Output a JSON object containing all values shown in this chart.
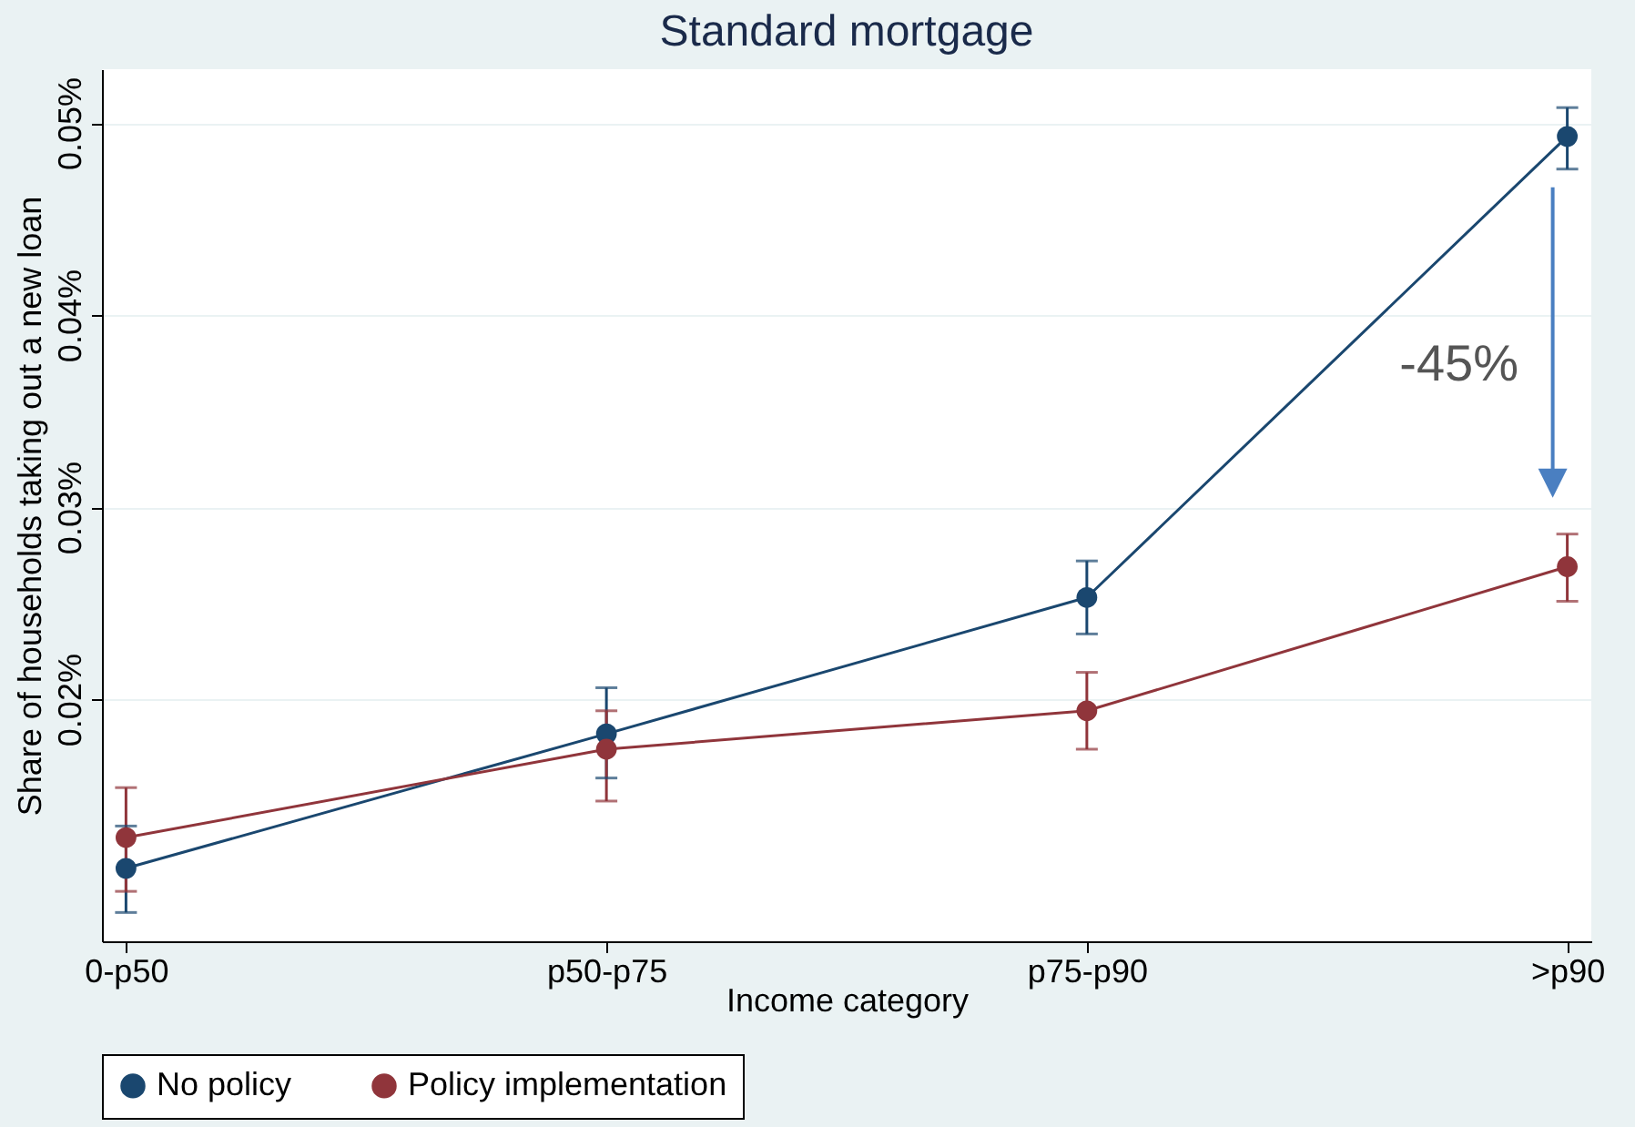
{
  "chart_data": {
    "type": "line",
    "title": "Standard mortgage",
    "xlabel": "Income category",
    "ylabel": "Share of households taking out a new loan",
    "categories": [
      "0-p50",
      "p50-p75",
      "p75-p90",
      ">p90"
    ],
    "series": [
      {
        "name": "No policy",
        "color": "#1a476f",
        "values": [
          0.0112,
          0.0182,
          0.0253,
          0.0493
        ],
        "errors": [
          [
            0.0089,
            0.0134
          ],
          [
            0.0159,
            0.0206
          ],
          [
            0.0234,
            0.0272
          ],
          [
            0.0476,
            0.0508
          ]
        ]
      },
      {
        "name": "Policy implementation",
        "color": "#90353b",
        "values": [
          0.0128,
          0.0174,
          0.0194,
          0.0269
        ],
        "errors": [
          [
            0.01,
            0.0154
          ],
          [
            0.0147,
            0.0194
          ],
          [
            0.0174,
            0.0214
          ],
          [
            0.0251,
            0.0286
          ]
        ]
      }
    ],
    "ylim": [
      0.0074,
      0.0528
    ],
    "yticks": [
      {
        "value": 0.02,
        "label": "0.02%"
      },
      {
        "value": 0.03,
        "label": "0.03%"
      },
      {
        "value": 0.04,
        "label": "0.04%"
      },
      {
        "value": 0.05,
        "label": "0.05%"
      }
    ],
    "grid": "y",
    "legend": "bottom",
    "marker": "circle",
    "line_style": "solid",
    "annotations": [
      "-45%"
    ]
  }
}
